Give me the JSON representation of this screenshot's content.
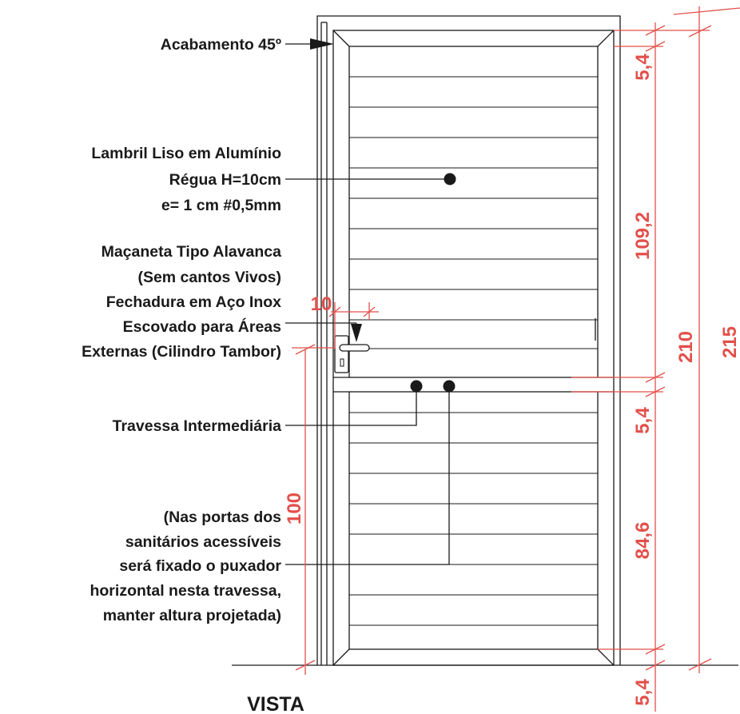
{
  "title": "VISTA",
  "notes": {
    "bevel": "Acabamento 45º",
    "panel": [
      "Lambril Liso em Alumínio",
      "Régua H=10cm",
      "e= 1 cm #0,5mm"
    ],
    "handle": [
      "Maçaneta Tipo Alavanca",
      "(Sem cantos Vivos)",
      "Fechadura em Aço Inox",
      "Escovado para Áreas",
      "Externas (Cilindro Tambor)"
    ],
    "rail": "Travessa Intermediária",
    "accessible": [
      "(Nas portas dos",
      "sanitários acessíveis",
      "será fixado o puxador",
      "horizontal nesta travessa,",
      "manter altura projetada)"
    ]
  },
  "dimensions": {
    "top_frame": "5,4",
    "upper_panel": "109,2",
    "middle_rail": "5,4",
    "lower_panel": "84,6",
    "bottom_frame": "5,4",
    "door_height": "210",
    "total_height": "215",
    "handle_offset": "10",
    "handle_height": "100"
  },
  "colors": {
    "line": "#1a1a1a",
    "dimension": "#e2504b",
    "background": "#ffffff"
  }
}
